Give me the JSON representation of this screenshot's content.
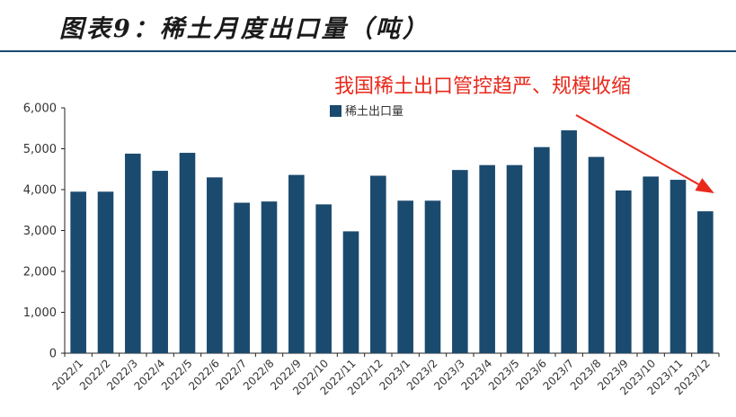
{
  "title": "图表9：稀土月度出口量（吨）",
  "annotation": "我国稀土出口管控趋严、规模收缩",
  "colors": {
    "bar": "#1b4a6f",
    "annotation": "#e8291c",
    "axis": "#222222"
  },
  "chart_data": {
    "type": "bar",
    "categories": [
      "2022/1",
      "2022/2",
      "2022/3",
      "2022/4",
      "2022/5",
      "2022/6",
      "2022/7",
      "2022/8",
      "2022/9",
      "2022/10",
      "2022/11",
      "2022/12",
      "2023/1",
      "2023/2",
      "2023/3",
      "2023/4",
      "2023/5",
      "2023/6",
      "2023/7",
      "2023/8",
      "2023/9",
      "2023/10",
      "2023/11",
      "2023/12"
    ],
    "series": [
      {
        "name": "稀土出口量",
        "values": [
          3950,
          3950,
          4880,
          4460,
          4900,
          4300,
          3680,
          3710,
          4360,
          3640,
          2980,
          4340,
          3730,
          3730,
          4480,
          4600,
          4600,
          5040,
          5450,
          4800,
          3980,
          4320,
          4240,
          3470
        ]
      }
    ],
    "ylim": [
      0,
      6000
    ],
    "yticks": [
      0,
      1000,
      2000,
      3000,
      4000,
      5000,
      6000
    ],
    "ytick_labels": [
      "0",
      "1,000",
      "2,000",
      "3,000",
      "4,000",
      "5,000",
      "6,000"
    ],
    "legend": "top-center",
    "grid": false
  }
}
